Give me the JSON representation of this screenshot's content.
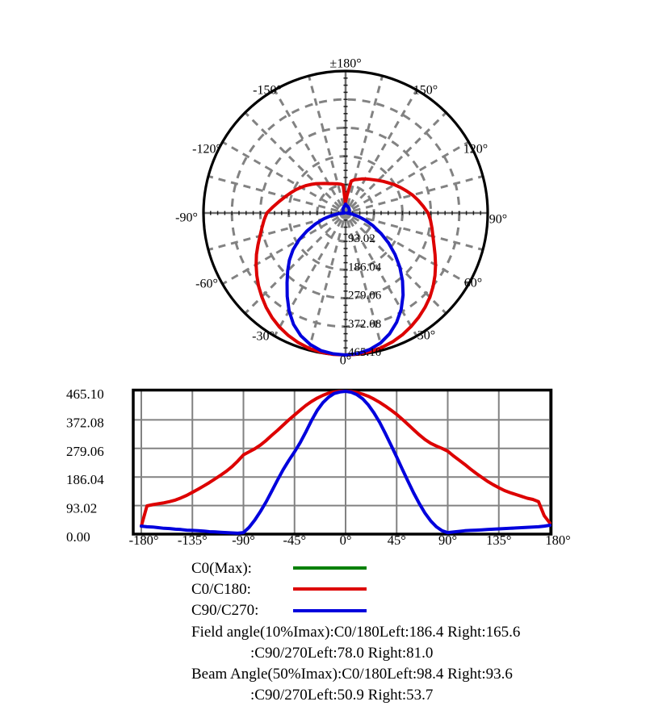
{
  "legend": {
    "items": [
      {
        "label": "C0(Max):",
        "color": "#008000"
      },
      {
        "label": "C0/C180:",
        "color": "#dd0000"
      },
      {
        "label": "C90/C270:",
        "color": "#0000dd"
      }
    ]
  },
  "notes": {
    "lines": [
      "Field angle(10%Imax):C0/180Left:186.4 Right:165.6",
      ":C90/270Left:78.0 Right:81.0",
      "Beam Angle(50%Imax):C0/180Left:98.4 Right:93.6",
      ":C90/270Left:50.9 Right:53.7"
    ]
  },
  "chart_data": [
    {
      "type": "line",
      "projection": "polar",
      "orientation": "0deg-at-bottom, positive-angles-right",
      "r_max": 465.1,
      "r_ticks": [
        93.02,
        186.04,
        279.06,
        372.08,
        465.1
      ],
      "r_tick_labels": [
        "93.02",
        "186.04",
        "279.06",
        "372.08",
        "465.10"
      ],
      "angle_tick_labels": [
        {
          "deg": 180,
          "text": "±180°"
        },
        {
          "deg": 150,
          "text": "150°"
        },
        {
          "deg": 120,
          "text": "120°"
        },
        {
          "deg": 90,
          "text": "90°"
        },
        {
          "deg": 60,
          "text": "60°"
        },
        {
          "deg": 30,
          "text": "30°"
        },
        {
          "deg": 0,
          "text": "0°"
        },
        {
          "deg": -30,
          "text": "-30°"
        },
        {
          "deg": -60,
          "text": "-60°"
        },
        {
          "deg": -90,
          "text": "-90°"
        },
        {
          "deg": -120,
          "text": "-120°"
        },
        {
          "deg": -150,
          "text": "-150°"
        }
      ],
      "grid": "dashed-gray, spokes every 15deg, 4 inner rings + solid outer circle",
      "x_deg": [
        -180,
        -175,
        -170,
        -165,
        -160,
        -155,
        -150,
        -145,
        -140,
        -135,
        -130,
        -125,
        -120,
        -115,
        -110,
        -105,
        -100,
        -95,
        -90,
        -85,
        -80,
        -75,
        -70,
        -65,
        -60,
        -55,
        -50,
        -45,
        -40,
        -35,
        -30,
        -25,
        -20,
        -15,
        -10,
        -5,
        0,
        5,
        10,
        15,
        20,
        25,
        30,
        35,
        40,
        45,
        50,
        55,
        60,
        65,
        70,
        75,
        80,
        85,
        90,
        95,
        100,
        105,
        110,
        115,
        120,
        125,
        130,
        135,
        140,
        145,
        150,
        155,
        160,
        165,
        170,
        175,
        180
      ],
      "series": [
        {
          "name": "C0/C180",
          "color": "#dd0000",
          "values": [
            26,
            92,
            96,
            99,
            102,
            106,
            111,
            118,
            126,
            136,
            146,
            157,
            168,
            180,
            192,
            205,
            220,
            238,
            258,
            268,
            278,
            290,
            305,
            322,
            338,
            355,
            372,
            388,
            404,
            419,
            432,
            443,
            452,
            459,
            463,
            465,
            465.1,
            464,
            461,
            456,
            449,
            440,
            429,
            417,
            404,
            390,
            374,
            357,
            340,
            323,
            308,
            296,
            287,
            279,
            270,
            255,
            241,
            227,
            212,
            198,
            185,
            172,
            161,
            151,
            142,
            135,
            129,
            123,
            117,
            113,
            106,
            60,
            36
          ]
        },
        {
          "name": "C90/C270",
          "color": "#0000dd",
          "values": [
            26,
            24,
            23,
            21,
            19,
            18,
            16,
            15,
            13,
            12,
            11,
            10,
            8,
            7,
            6,
            5,
            4,
            3,
            5,
            22,
            46,
            74,
            105,
            140,
            176,
            210,
            240,
            268,
            298,
            333,
            370,
            403,
            428,
            446,
            458,
            463,
            465.1,
            462,
            454,
            441,
            421,
            395,
            364,
            328,
            290,
            251,
            211,
            172,
            134,
            99,
            68,
            43,
            24,
            11,
            5,
            7,
            9,
            11,
            12,
            13,
            14,
            15,
            16,
            17,
            18,
            19,
            20,
            21,
            22,
            23,
            24,
            26,
            29
          ]
        }
      ]
    },
    {
      "type": "line",
      "projection": "cartesian",
      "uses_series_from_chart": 0,
      "x_ticks_deg": [
        -180,
        -135,
        -90,
        -45,
        0,
        45,
        90,
        135,
        180
      ],
      "x_tick_labels": [
        "-180°",
        "-135°",
        "-90°",
        "-45°",
        "0°",
        "45°",
        "90°",
        "135°",
        "180°"
      ],
      "y_ticks": [
        0,
        93.02,
        186.04,
        279.06,
        372.08,
        465.1
      ],
      "y_tick_labels": [
        "0.00",
        "93.02",
        "186.04",
        "279.06",
        "372.08",
        "465.10"
      ],
      "xlim": [
        -180,
        180
      ],
      "ylim": [
        0,
        465.1
      ],
      "grid": "solid-gray"
    }
  ]
}
